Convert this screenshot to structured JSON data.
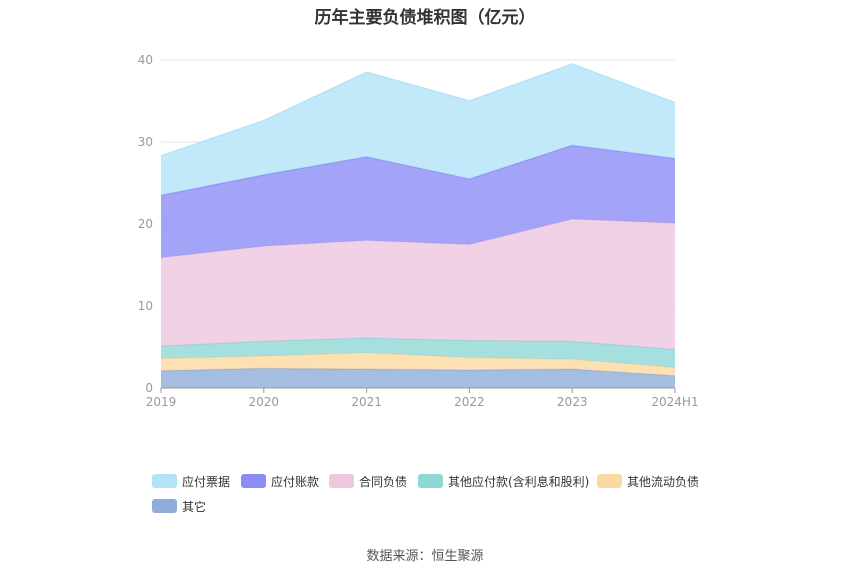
{
  "title": "历年主要负债堆积图（亿元）",
  "source": "数据来源：恒生聚源",
  "chart_data": {
    "type": "area",
    "stacked": true,
    "categories": [
      "2019",
      "2020",
      "2021",
      "2022",
      "2023",
      "2024H1"
    ],
    "ylim": [
      0,
      40
    ],
    "yticks": [
      0,
      10,
      20,
      30,
      40
    ],
    "grid": true,
    "legend_position": "bottom",
    "series": [
      {
        "name": "其它",
        "color": "#8fadd8",
        "values": [
          2.1,
          2.4,
          2.3,
          2.2,
          2.3,
          1.5
        ]
      },
      {
        "name": "其他流动负债",
        "color": "#fcd9a0",
        "values": [
          1.5,
          1.5,
          2.0,
          1.5,
          1.2,
          1.0
        ]
      },
      {
        "name": "其他应付款(含利息和股利)",
        "color": "#8ed8d6",
        "values": [
          1.5,
          1.8,
          1.8,
          2.1,
          2.2,
          2.2
        ]
      },
      {
        "name": "合同负债",
        "color": "#eec6de",
        "values": [
          10.8,
          11.6,
          11.9,
          11.7,
          14.9,
          15.4
        ]
      },
      {
        "name": "应付账款",
        "color": "#8c8cf5",
        "values": [
          7.6,
          8.7,
          10.2,
          8.0,
          9.0,
          7.9
        ]
      },
      {
        "name": "应付票据",
        "color": "#b3e3f8",
        "values": [
          4.8,
          6.6,
          10.3,
          9.5,
          9.9,
          6.8
        ]
      }
    ],
    "legend_order": [
      "应付票据",
      "应付账款",
      "合同负债",
      "其他应付款(含利息和股利)",
      "其他流动负债",
      "其它"
    ]
  }
}
